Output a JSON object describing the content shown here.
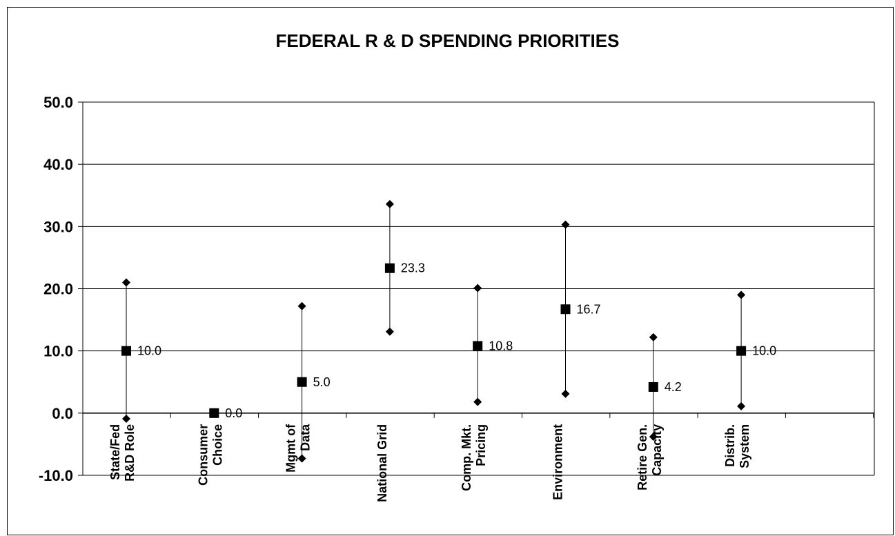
{
  "chart_data": {
    "type": "scatter",
    "title": "FEDERAL R & D SPENDING PRIORITIES",
    "ylim": [
      -10,
      50
    ],
    "yticks": [
      "50.0",
      "40.0",
      "30.0",
      "20.0",
      "10.0",
      "0.0",
      "-10.0"
    ],
    "ytick_values": [
      50,
      40,
      30,
      20,
      10,
      0,
      -10
    ],
    "grid": true,
    "categories": [
      [
        "State/Fed",
        "R&D Role"
      ],
      [
        "Consumer",
        "Choice"
      ],
      [
        "Mgmt of",
        "Data"
      ],
      [
        "National Grid"
      ],
      [
        "Comp. Mkt.",
        "Pricing"
      ],
      [
        "Environment"
      ],
      [
        "Retire Gen.",
        "Capacity"
      ],
      [
        "Distrib.",
        "System"
      ]
    ],
    "series": [
      {
        "values": [
          10.0,
          0.0,
          5.0,
          23.3,
          10.8,
          16.7,
          4.2,
          10.0
        ],
        "labels": [
          "10.0",
          "0.0",
          "5.0",
          "23.3",
          "10.8",
          "16.7",
          "4.2",
          "10.0"
        ]
      },
      {
        "values": [
          21.0,
          0.0,
          17.2,
          33.6,
          20.1,
          30.3,
          12.2,
          19.0
        ]
      },
      {
        "values": [
          -0.9,
          0.0,
          -7.3,
          13.1,
          1.8,
          3.1,
          -3.8,
          1.1
        ]
      }
    ],
    "colors": {
      "marker": "#000000",
      "grid": "#000000"
    }
  }
}
